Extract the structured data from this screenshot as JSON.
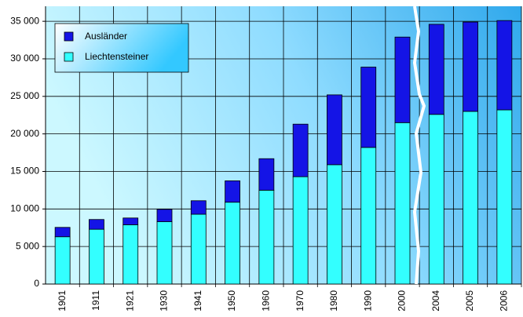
{
  "chart_data": {
    "type": "stacked_bar",
    "categories": [
      "1901",
      "1911",
      "1921",
      "1930",
      "1941",
      "1950",
      "1960",
      "1970",
      "1980",
      "1990",
      "2000",
      "2004",
      "2005",
      "2006"
    ],
    "series": [
      {
        "name": "Liechtensteiner",
        "color": "#33ffff",
        "values": [
          6300,
          7300,
          7900,
          8300,
          9300,
          10900,
          12500,
          14300,
          15900,
          18200,
          21500,
          22600,
          23000,
          23200
        ]
      },
      {
        "name": "Ausländer",
        "color": "#1414e6",
        "values": [
          1250,
          1300,
          900,
          1650,
          1800,
          2850,
          4200,
          7000,
          9300,
          10700,
          11400,
          12000,
          11900,
          11900
        ]
      }
    ],
    "ylim": [
      0,
      37000
    ],
    "yticks": [
      0,
      {
        "value": 5000,
        "label": "5 000"
      },
      {
        "value": 10000,
        "label": "10 000"
      },
      {
        "value": 15000,
        "label": "15 000"
      },
      {
        "value": 20000,
        "label": "20 000"
      },
      {
        "value": 25000,
        "label": "25 000"
      },
      {
        "value": 30000,
        "label": "30 000"
      },
      {
        "value": 35000,
        "label": "35 000"
      }
    ],
    "grid": true
  }
}
